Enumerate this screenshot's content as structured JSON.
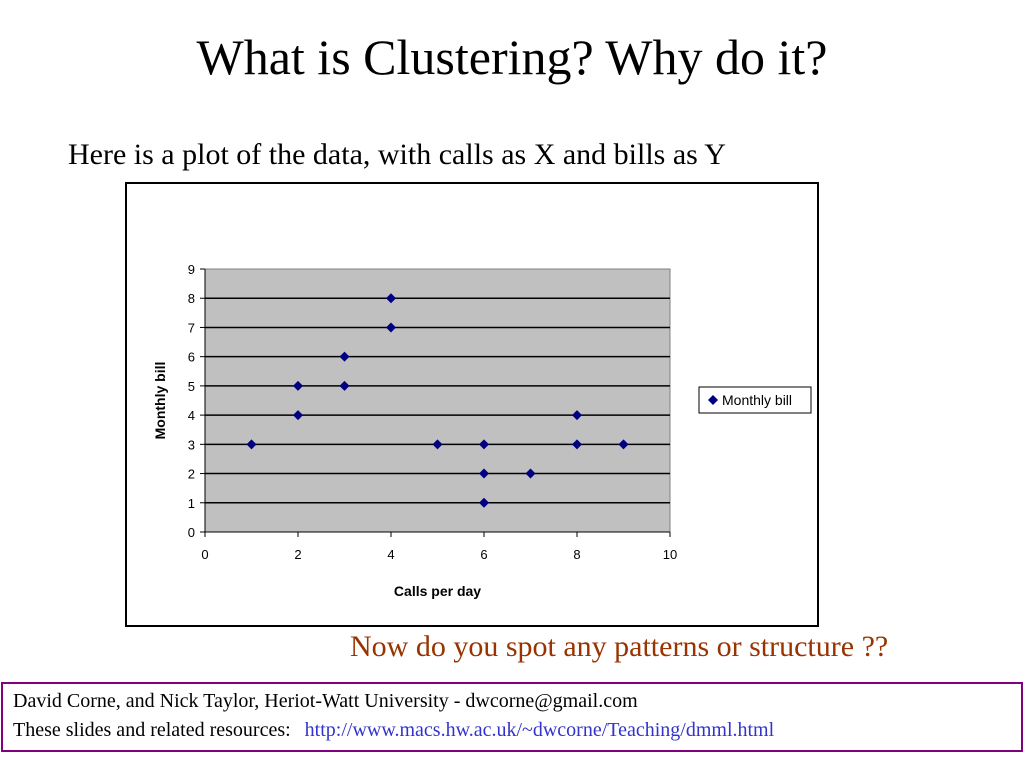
{
  "slide": {
    "title": "What is Clustering?  Why do it?",
    "subtitle": "Here is a plot of the data, with calls as X and bills as Y",
    "prompt": "Now do you spot any patterns or structure ??"
  },
  "footer": {
    "line1": "David Corne, and Nick Taylor,  Heriot-Watt University  -  dwcorne@gmail.com",
    "line2_label": "These slides and related resources:",
    "link": "http://www.macs.hw.ac.uk/~dwcorne/Teaching/dmml.html"
  },
  "colors": {
    "marker": "#000080",
    "plot_bg": "#c0c0c0",
    "prompt": "#993300",
    "link": "#3333cc",
    "footer_border": "#800080"
  },
  "chart_data": {
    "type": "scatter",
    "title": "",
    "xlabel": "Calls per day",
    "ylabel": "Monthly bill",
    "xlim": [
      0,
      10
    ],
    "ylim": [
      0,
      9
    ],
    "xticks": [
      0,
      2,
      4,
      6,
      8,
      10
    ],
    "yticks": [
      0,
      1,
      2,
      3,
      4,
      5,
      6,
      7,
      8,
      9
    ],
    "grid": "horizontal",
    "legend": "right",
    "series": [
      {
        "name": "Monthly bill",
        "marker": "diamond",
        "points": [
          [
            1,
            3
          ],
          [
            2,
            5
          ],
          [
            2,
            4
          ],
          [
            3,
            6
          ],
          [
            3,
            5
          ],
          [
            4,
            8
          ],
          [
            4,
            7
          ],
          [
            5,
            3
          ],
          [
            6,
            3
          ],
          [
            6,
            2
          ],
          [
            6,
            1
          ],
          [
            7,
            2
          ],
          [
            8,
            4
          ],
          [
            8,
            3
          ],
          [
            9,
            3
          ]
        ]
      }
    ]
  }
}
